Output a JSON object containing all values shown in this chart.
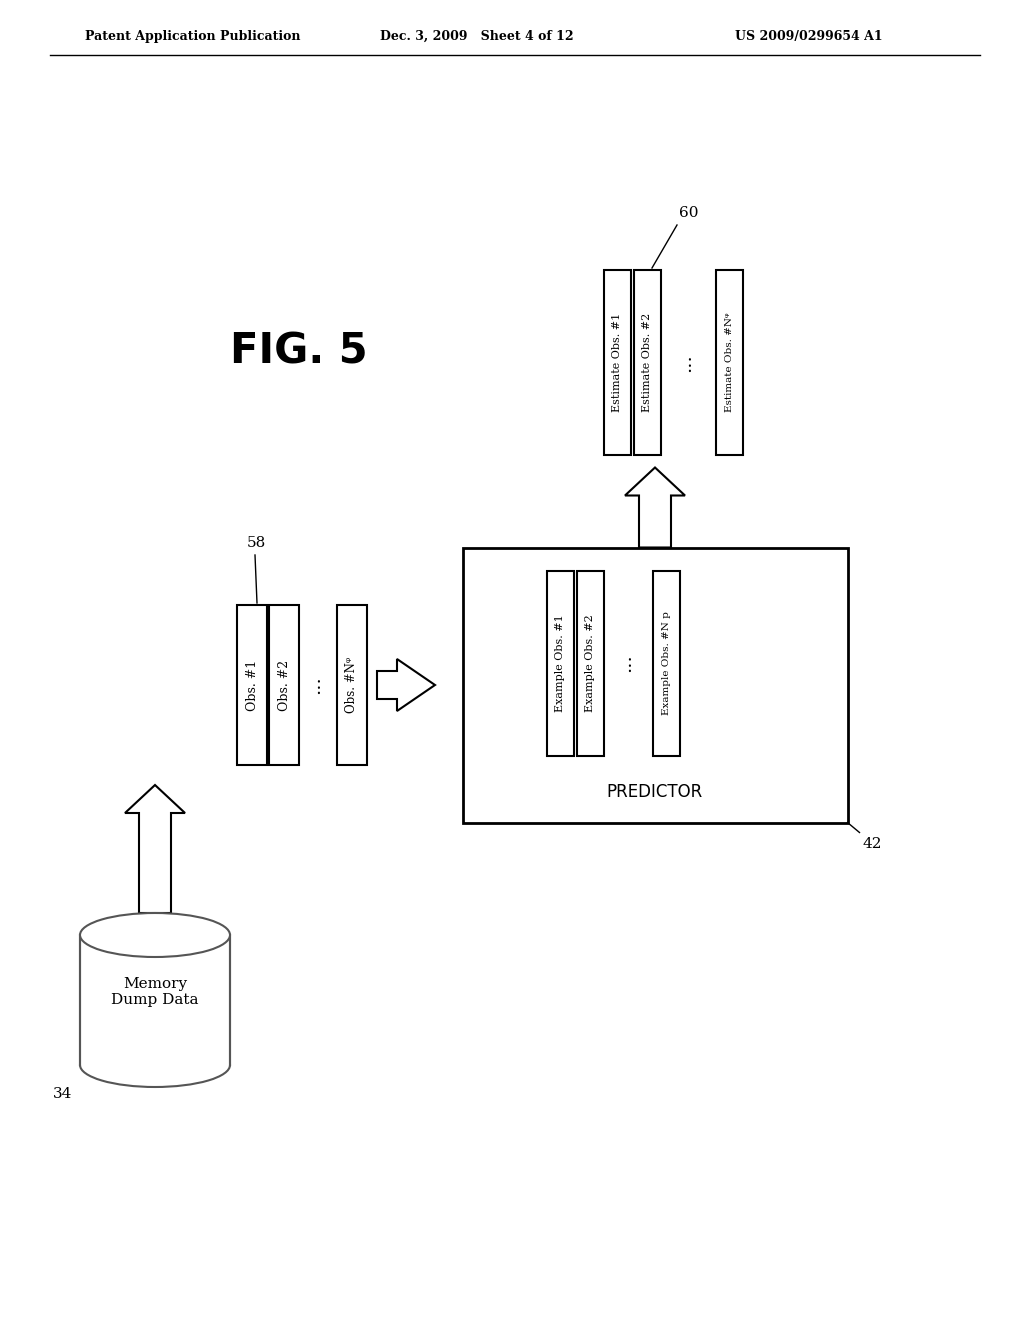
{
  "background_color": "#ffffff",
  "header_left": "Patent Application Publication",
  "header_mid": "Dec. 3, 2009   Sheet 4 of 12",
  "header_right": "US 2009/0299654 A1",
  "fig_label": "FIG. 5",
  "cylinder_label": "Memory\nDump Data",
  "cylinder_ref": "34",
  "obs_box_ref": "58",
  "predictor_box_ref": "42",
  "predictor_label": "PREDICTOR",
  "estimate_ref": "60"
}
